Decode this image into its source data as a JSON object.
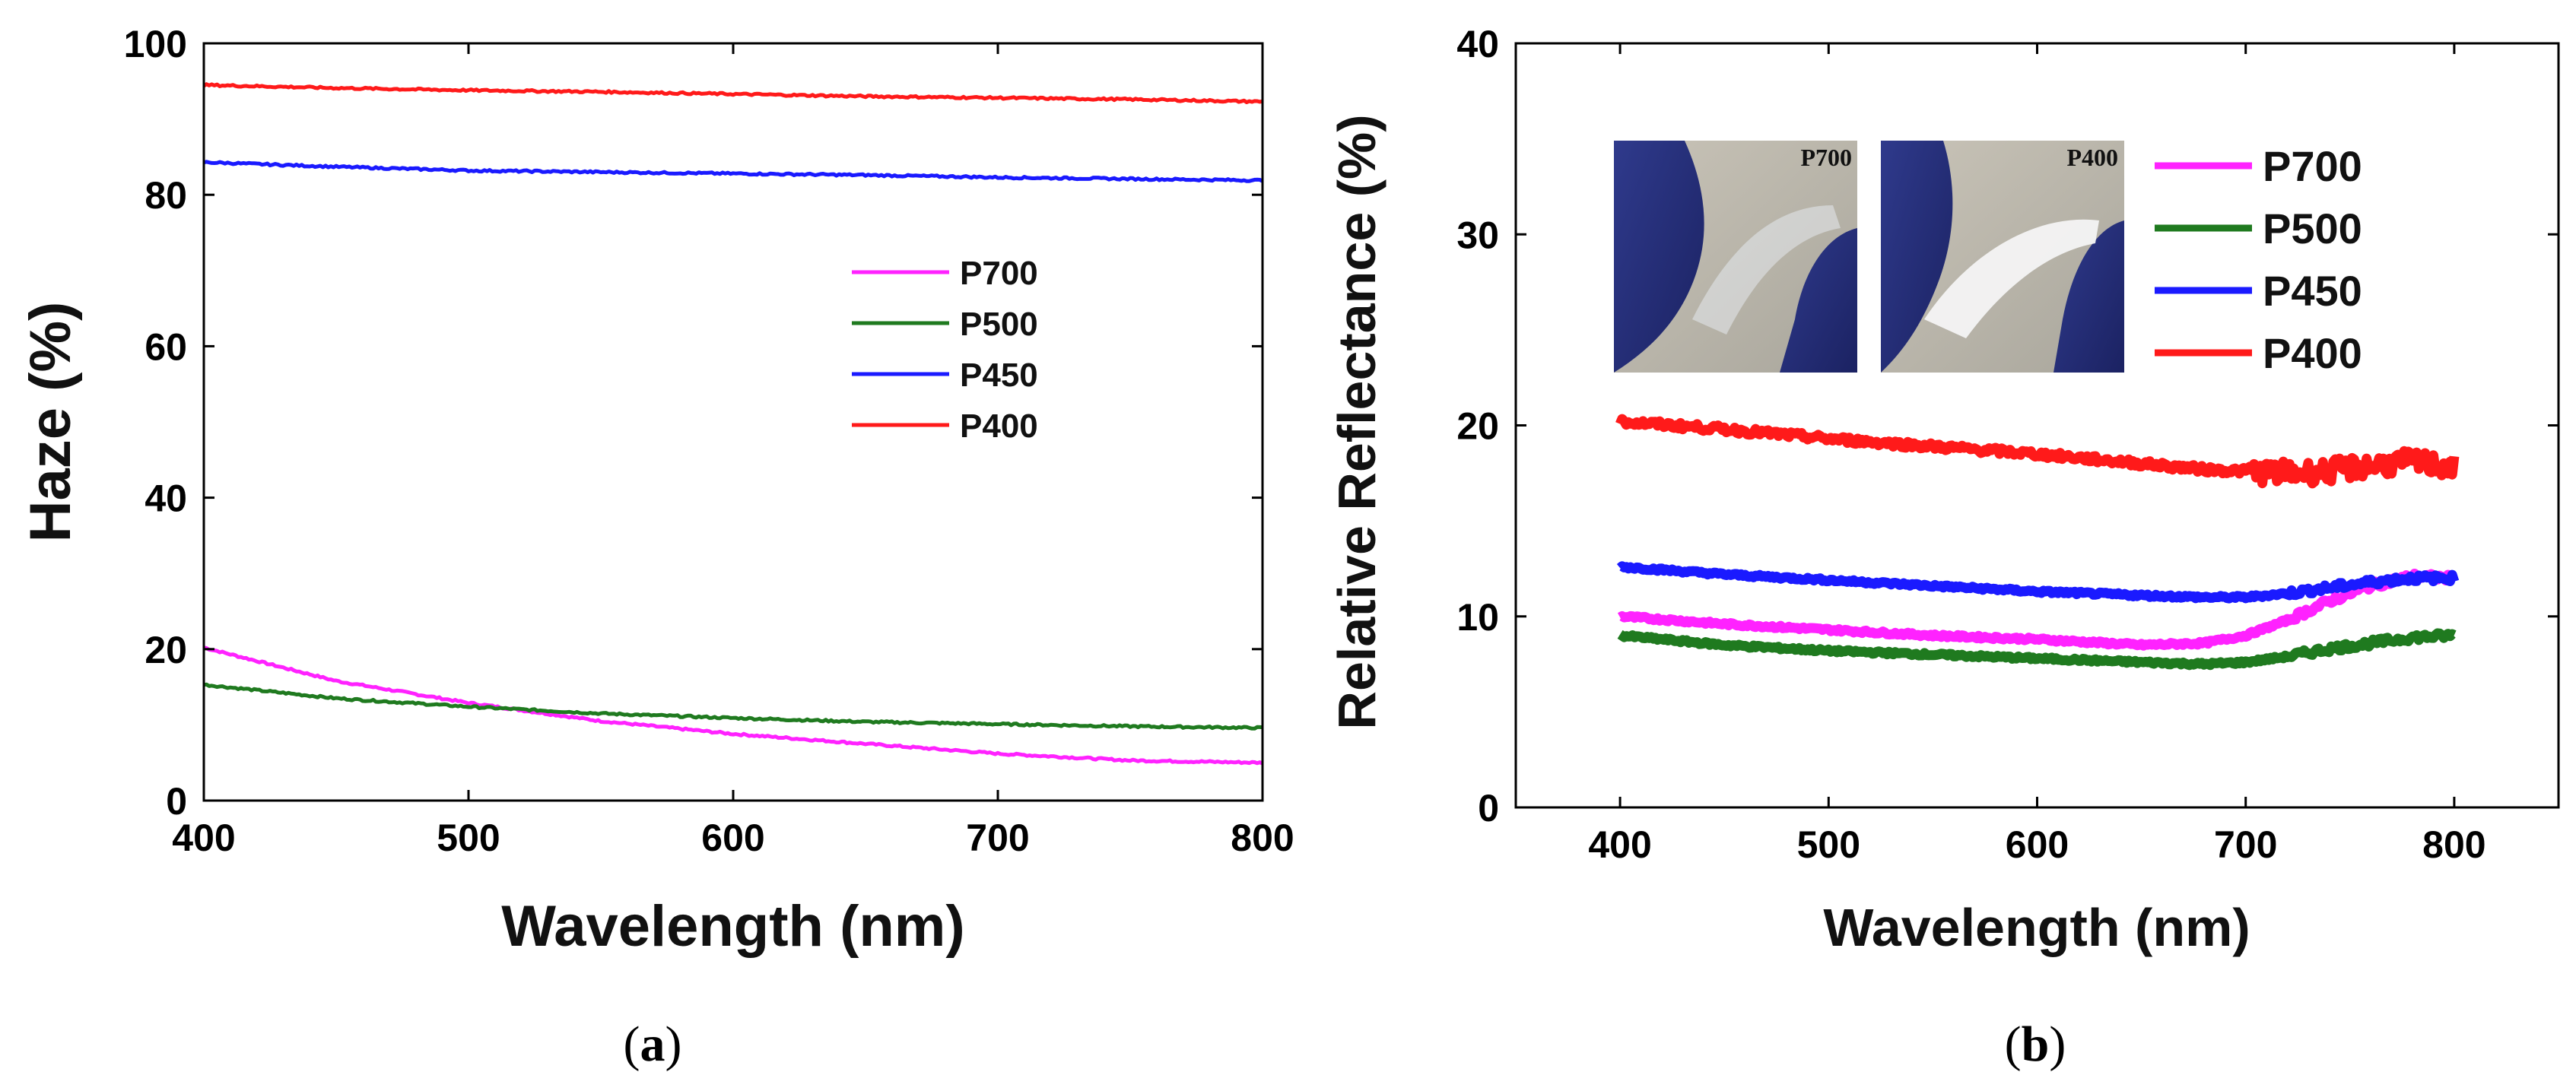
{
  "chart_data": [
    {
      "id": "a",
      "type": "line",
      "panel_label": "a",
      "xlabel": "Wavelength (nm)",
      "ylabel": "Haze (%)",
      "xlim": [
        400,
        800
      ],
      "ylim": [
        0,
        100
      ],
      "xticks": [
        400,
        500,
        600,
        700,
        800
      ],
      "yticks": [
        0,
        20,
        40,
        60,
        80,
        100
      ],
      "legend_position": "center-right",
      "series": [
        {
          "name": "P700",
          "color": "#ff22ff",
          "x": [
            400,
            450,
            500,
            550,
            600,
            650,
            700,
            750,
            800
          ],
          "values": [
            20.2,
            15.8,
            12.9,
            10.5,
            8.8,
            7.5,
            6.2,
            5.3,
            5.0
          ]
        },
        {
          "name": "P500",
          "color": "#1f7a1f",
          "x": [
            400,
            450,
            500,
            550,
            600,
            650,
            700,
            750,
            800
          ],
          "values": [
            15.3,
            13.5,
            12.4,
            11.5,
            10.9,
            10.4,
            10.1,
            9.8,
            9.6
          ]
        },
        {
          "name": "P450",
          "color": "#1a1aff",
          "x": [
            400,
            450,
            500,
            550,
            600,
            650,
            700,
            750,
            800
          ],
          "values": [
            84.3,
            83.7,
            83.2,
            83.0,
            82.8,
            82.6,
            82.3,
            82.1,
            81.9
          ]
        },
        {
          "name": "P400",
          "color": "#ff1a1a",
          "x": [
            400,
            450,
            500,
            550,
            600,
            650,
            700,
            750,
            800
          ],
          "values": [
            94.5,
            94.1,
            93.8,
            93.6,
            93.3,
            93.0,
            92.8,
            92.6,
            92.3
          ]
        }
      ]
    },
    {
      "id": "b",
      "type": "line",
      "panel_label": "b",
      "xlabel": "Wavelength (nm)",
      "ylabel": "Relative Reflectance (%)",
      "xlim": [
        350,
        850
      ],
      "ylim": [
        0,
        40
      ],
      "xticks": [
        400,
        500,
        600,
        700,
        800
      ],
      "yticks": [
        0,
        10,
        20,
        30,
        40
      ],
      "legend_position": "top-right",
      "inset_photos": [
        "P700",
        "P400"
      ],
      "series": [
        {
          "name": "P700",
          "color": "#ff22ff",
          "x": [
            400,
            450,
            500,
            550,
            600,
            650,
            680,
            700,
            720,
            740,
            760,
            780,
            800
          ],
          "values": [
            10.0,
            9.6,
            9.3,
            9.0,
            8.8,
            8.5,
            8.6,
            9.0,
            9.8,
            10.8,
            11.6,
            12.1,
            12.0
          ]
        },
        {
          "name": "P500",
          "color": "#1f7a1f",
          "x": [
            400,
            450,
            500,
            550,
            600,
            650,
            680,
            700,
            720,
            740,
            760,
            780,
            800
          ],
          "values": [
            9.0,
            8.5,
            8.2,
            8.0,
            7.8,
            7.6,
            7.5,
            7.6,
            7.9,
            8.3,
            8.6,
            8.9,
            9.0
          ]
        },
        {
          "name": "P450",
          "color": "#1a1aff",
          "x": [
            400,
            450,
            500,
            550,
            600,
            650,
            680,
            700,
            720,
            740,
            760,
            780,
            800
          ],
          "values": [
            12.6,
            12.2,
            11.9,
            11.6,
            11.3,
            11.1,
            11.0,
            11.0,
            11.2,
            11.5,
            11.8,
            12.0,
            12.0
          ]
        },
        {
          "name": "P400",
          "color": "#ff1a1a",
          "x": [
            400,
            450,
            500,
            550,
            600,
            650,
            680,
            700,
            720,
            740,
            760,
            780,
            800
          ],
          "values": [
            20.2,
            19.8,
            19.3,
            18.9,
            18.5,
            18.0,
            17.7,
            17.6,
            17.5,
            17.6,
            17.9,
            18.1,
            17.8
          ]
        }
      ]
    }
  ]
}
